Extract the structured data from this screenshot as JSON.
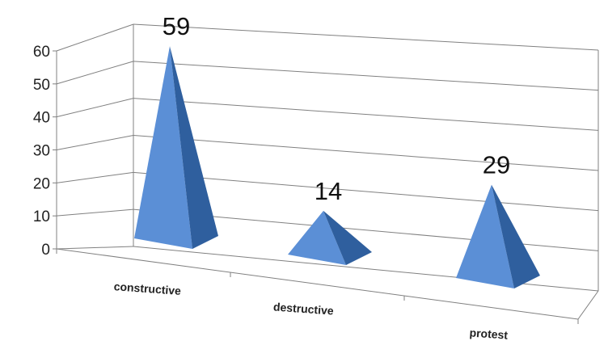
{
  "chart_data": {
    "type": "bar",
    "style": "3d-pyramid",
    "categories": [
      "constructive",
      "destructive",
      "protest"
    ],
    "values": [
      59,
      14,
      29
    ],
    "data_labels": [
      "59",
      "14",
      "29"
    ],
    "ylim": [
      0,
      60
    ],
    "yticks": [
      "0",
      "10",
      "20",
      "30",
      "40",
      "50",
      "60"
    ],
    "grid": true,
    "legend": "none",
    "colors": {
      "face_light": "#5b8fd6",
      "face_dark": "#2f5f9e",
      "grid": "#808080"
    }
  }
}
